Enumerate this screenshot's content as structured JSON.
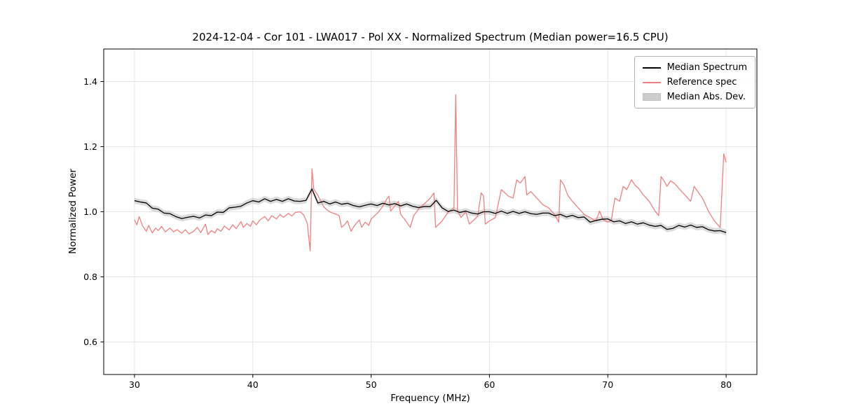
{
  "title": "2024-12-04 - Cor 101 - LWA017 - Pol XX - Normalized Spectrum (Median power=16.5 CPU)",
  "chart_data": {
    "type": "line",
    "title": "2024-12-04 - Cor 101 - LWA017 - Pol XX - Normalized Spectrum (Median power=16.5 CPU)",
    "xlabel": "Frequency (MHz)",
    "ylabel": "Normalized Power",
    "xlim": [
      27.4,
      82.6
    ],
    "ylim": [
      0.5,
      1.5
    ],
    "xticks": [
      30,
      40,
      50,
      60,
      70,
      80
    ],
    "xtick_labels": [
      "30",
      "40",
      "50",
      "60",
      "70",
      "80"
    ],
    "yticks": [
      0.6,
      0.8,
      1.0,
      1.2,
      1.4
    ],
    "ytick_labels": [
      "0.6",
      "0.8",
      "1.0",
      "1.2",
      "1.4"
    ],
    "grid": true,
    "legend_position": "upper right",
    "series": [
      {
        "name": "Median Spectrum",
        "color": "#000000",
        "x_start": 30,
        "x_step": 0.5,
        "values": [
          1.034,
          1.03,
          1.027,
          1.011,
          1.008,
          0.996,
          0.994,
          0.985,
          0.979,
          0.983,
          0.986,
          0.981,
          0.99,
          0.988,
          0.999,
          0.998,
          1.012,
          1.014,
          1.017,
          1.027,
          1.034,
          1.03,
          1.04,
          1.032,
          1.038,
          1.032,
          1.04,
          1.033,
          1.032,
          1.035,
          1.07,
          1.027,
          1.032,
          1.024,
          1.03,
          1.023,
          1.026,
          1.019,
          1.015,
          1.02,
          1.024,
          1.019,
          1.026,
          1.021,
          1.025,
          1.018,
          1.024,
          1.017,
          1.013,
          1.016,
          1.016,
          1.035,
          1.012,
          1.001,
          1.005,
          0.998,
          1.002,
          0.996,
          0.993,
          1.0,
          1.0,
          0.995,
          1.002,
          0.995,
          1.001,
          0.995,
          1.0,
          0.994,
          0.992,
          0.996,
          0.996,
          0.988,
          0.992,
          0.984,
          0.989,
          0.982,
          0.984,
          0.968,
          0.973,
          0.977,
          0.978,
          0.969,
          0.972,
          0.964,
          0.969,
          0.962,
          0.966,
          0.959,
          0.955,
          0.958,
          0.946,
          0.949,
          0.958,
          0.953,
          0.959,
          0.952,
          0.954,
          0.945,
          0.941,
          0.942,
          0.936
        ]
      },
      {
        "name": "Reference spec",
        "color": "#f08080",
        "points": [
          [
            30.0,
            0.975
          ],
          [
            30.2,
            0.96
          ],
          [
            30.4,
            0.985
          ],
          [
            30.7,
            0.955
          ],
          [
            31.0,
            0.94
          ],
          [
            31.2,
            0.958
          ],
          [
            31.5,
            0.935
          ],
          [
            31.8,
            0.95
          ],
          [
            32.0,
            0.942
          ],
          [
            32.3,
            0.955
          ],
          [
            32.6,
            0.938
          ],
          [
            33.0,
            0.95
          ],
          [
            33.3,
            0.938
          ],
          [
            33.6,
            0.945
          ],
          [
            34.0,
            0.934
          ],
          [
            34.3,
            0.945
          ],
          [
            34.6,
            0.932
          ],
          [
            35.0,
            0.94
          ],
          [
            35.3,
            0.952
          ],
          [
            35.6,
            0.936
          ],
          [
            36.0,
            0.962
          ],
          [
            36.2,
            0.93
          ],
          [
            36.5,
            0.942
          ],
          [
            36.8,
            0.935
          ],
          [
            37.0,
            0.948
          ],
          [
            37.3,
            0.94
          ],
          [
            37.6,
            0.956
          ],
          [
            38.0,
            0.944
          ],
          [
            38.3,
            0.96
          ],
          [
            38.6,
            0.948
          ],
          [
            39.0,
            0.97
          ],
          [
            39.2,
            0.952
          ],
          [
            39.5,
            0.964
          ],
          [
            39.8,
            0.955
          ],
          [
            40.0,
            0.972
          ],
          [
            40.3,
            0.96
          ],
          [
            40.6,
            0.975
          ],
          [
            41.0,
            0.985
          ],
          [
            41.3,
            0.972
          ],
          [
            41.6,
            0.988
          ],
          [
            42.0,
            0.978
          ],
          [
            42.3,
            0.992
          ],
          [
            42.6,
            0.983
          ],
          [
            43.0,
            0.995
          ],
          [
            43.3,
            0.987
          ],
          [
            43.6,
            0.998
          ],
          [
            44.0,
            1.0
          ],
          [
            44.3,
            0.99
          ],
          [
            44.6,
            0.965
          ],
          [
            44.85,
            0.88
          ],
          [
            45.0,
            1.132
          ],
          [
            45.15,
            1.07
          ],
          [
            45.5,
            1.05
          ],
          [
            46.0,
            1.015
          ],
          [
            46.3,
            1.005
          ],
          [
            46.6,
            0.998
          ],
          [
            47.0,
            0.993
          ],
          [
            47.3,
            0.988
          ],
          [
            47.5,
            0.952
          ],
          [
            47.8,
            0.962
          ],
          [
            48.0,
            0.972
          ],
          [
            48.3,
            0.94
          ],
          [
            48.6,
            0.958
          ],
          [
            49.0,
            0.975
          ],
          [
            49.2,
            0.952
          ],
          [
            49.5,
            0.968
          ],
          [
            49.8,
            0.958
          ],
          [
            50.0,
            0.978
          ],
          [
            50.3,
            0.988
          ],
          [
            50.6,
            0.998
          ],
          [
            51.0,
            1.018
          ],
          [
            51.3,
            1.038
          ],
          [
            51.5,
            1.048
          ],
          [
            51.65,
            1.002
          ],
          [
            52.0,
            1.018
          ],
          [
            52.3,
            1.032
          ],
          [
            52.5,
            0.992
          ],
          [
            52.8,
            0.978
          ],
          [
            53.0,
            0.968
          ],
          [
            53.3,
            0.952
          ],
          [
            53.6,
            0.988
          ],
          [
            54.0,
            1.008
          ],
          [
            54.3,
            1.018
          ],
          [
            54.6,
            1.028
          ],
          [
            55.0,
            1.042
          ],
          [
            55.3,
            1.058
          ],
          [
            55.45,
            0.952
          ],
          [
            56.0,
            0.972
          ],
          [
            56.5,
            0.998
          ],
          [
            57.0,
            1.012
          ],
          [
            57.15,
            1.36
          ],
          [
            57.3,
            1.002
          ],
          [
            57.6,
            0.982
          ],
          [
            58.0,
            1.0
          ],
          [
            58.3,
            0.962
          ],
          [
            58.6,
            0.972
          ],
          [
            59.0,
            0.986
          ],
          [
            59.3,
            1.058
          ],
          [
            59.5,
            1.048
          ],
          [
            59.65,
            0.962
          ],
          [
            60.0,
            0.972
          ],
          [
            60.5,
            0.982
          ],
          [
            61.0,
            1.068
          ],
          [
            61.3,
            1.058
          ],
          [
            61.6,
            1.048
          ],
          [
            62.0,
            1.042
          ],
          [
            62.3,
            1.098
          ],
          [
            62.6,
            1.088
          ],
          [
            63.0,
            1.108
          ],
          [
            63.15,
            1.052
          ],
          [
            63.5,
            1.062
          ],
          [
            64.0,
            1.042
          ],
          [
            64.5,
            1.022
          ],
          [
            65.0,
            1.012
          ],
          [
            65.5,
            0.992
          ],
          [
            65.85,
            0.968
          ],
          [
            66.0,
            1.098
          ],
          [
            66.3,
            1.082
          ],
          [
            66.6,
            1.052
          ],
          [
            67.0,
            1.032
          ],
          [
            67.5,
            1.012
          ],
          [
            68.0,
            0.992
          ],
          [
            68.5,
            0.982
          ],
          [
            69.0,
            0.972
          ],
          [
            69.3,
            1.002
          ],
          [
            69.6,
            0.976
          ],
          [
            70.0,
            0.968
          ],
          [
            70.3,
            0.974
          ],
          [
            70.6,
            1.042
          ],
          [
            71.0,
            1.032
          ],
          [
            71.3,
            1.078
          ],
          [
            71.6,
            1.068
          ],
          [
            72.0,
            1.098
          ],
          [
            72.3,
            1.082
          ],
          [
            72.6,
            1.072
          ],
          [
            73.0,
            1.052
          ],
          [
            73.5,
            1.032
          ],
          [
            74.0,
            1.002
          ],
          [
            74.3,
            0.988
          ],
          [
            74.5,
            1.108
          ],
          [
            74.8,
            1.092
          ],
          [
            75.0,
            1.078
          ],
          [
            75.3,
            1.095
          ],
          [
            75.6,
            1.088
          ],
          [
            76.0,
            1.072
          ],
          [
            76.5,
            1.052
          ],
          [
            77.0,
            1.032
          ],
          [
            77.3,
            1.078
          ],
          [
            77.6,
            1.062
          ],
          [
            78.0,
            1.042
          ],
          [
            78.5,
            1.002
          ],
          [
            79.0,
            0.972
          ],
          [
            79.5,
            0.952
          ],
          [
            79.8,
            1.178
          ],
          [
            80.0,
            1.152
          ]
        ]
      }
    ],
    "band": {
      "name": "Median Abs. Dev.",
      "color": "#bdbdbd",
      "opacity": 0.55,
      "halfwidth": 0.009,
      "follows": "Median Spectrum"
    }
  }
}
